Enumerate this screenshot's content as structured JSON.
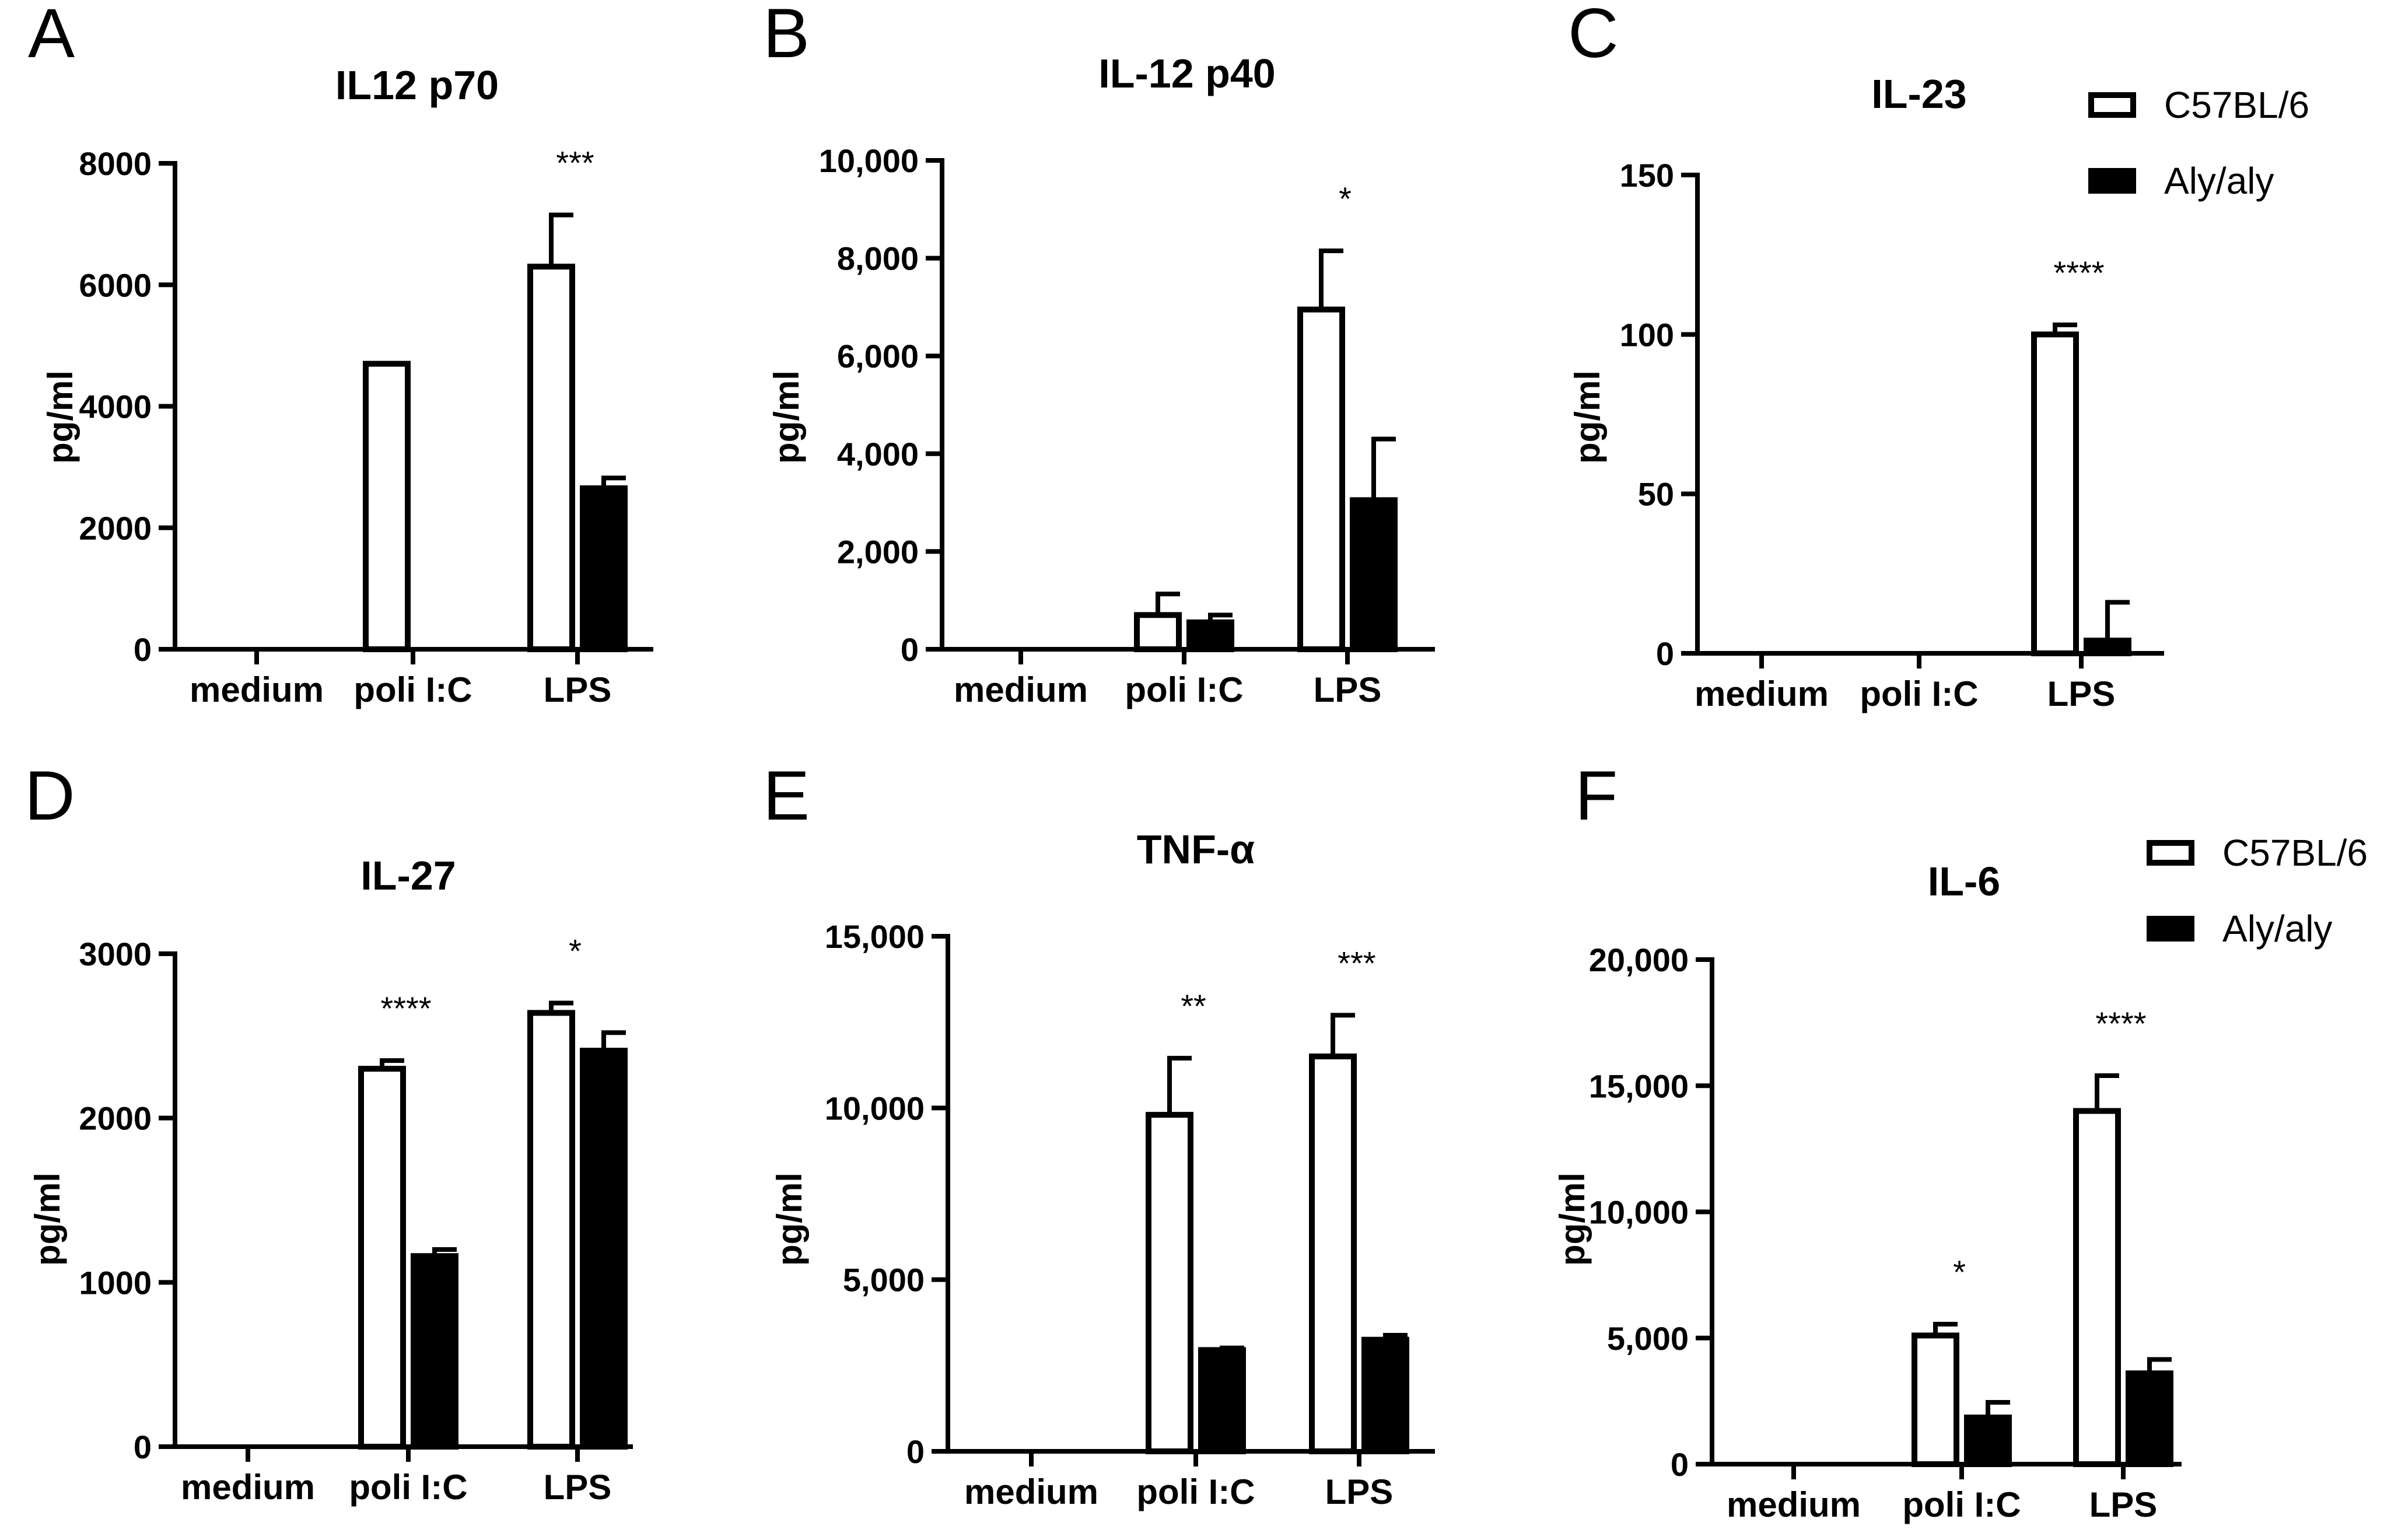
{
  "figure": {
    "legend": [
      {
        "label": "C57BL/6",
        "fill": "#ffffff"
      },
      {
        "label": "Aly/aly",
        "fill": "#000000"
      }
    ]
  },
  "colors": {
    "wild_type": "#ffffff",
    "mutant": "#000000",
    "stroke": "#000000"
  },
  "chart_data": [
    {
      "panel": "A",
      "type": "bar",
      "title": "IL12 p70",
      "ylabel": "pg/ml",
      "categories": [
        "medium",
        "poli I:C",
        "LPS"
      ],
      "ylim": [
        0,
        8000
      ],
      "yticks": [
        0,
        2000,
        4000,
        6000,
        8000
      ],
      "ytick_labels": [
        "0",
        "2000",
        "4000",
        "6000",
        "8000"
      ],
      "series": [
        {
          "name": "C57BL/6",
          "values": [
            0,
            4700,
            6300
          ],
          "errors": [
            0,
            0,
            850
          ]
        },
        {
          "name": "Aly/aly",
          "values": [
            0,
            0,
            2650
          ],
          "errors": [
            0,
            0,
            170
          ]
        }
      ],
      "significance": [
        "",
        "",
        "***"
      ],
      "legend": false
    },
    {
      "panel": "B",
      "type": "bar",
      "title": "IL-12 p40",
      "ylabel": "pg/ml",
      "categories": [
        "medium",
        "poli I:C",
        "LPS"
      ],
      "ylim": [
        0,
        10000
      ],
      "yticks": [
        0,
        2000,
        4000,
        6000,
        8000,
        10000
      ],
      "ytick_labels": [
        "0",
        "2,000",
        "4,000",
        "6,000",
        "8,000",
        "10,000"
      ],
      "series": [
        {
          "name": "C57BL/6",
          "values": [
            0,
            700,
            6950
          ],
          "errors": [
            0,
            430,
            1200
          ]
        },
        {
          "name": "Aly/aly",
          "values": [
            0,
            550,
            3050
          ],
          "errors": [
            0,
            150,
            1250
          ]
        }
      ],
      "significance": [
        "",
        "",
        "*"
      ],
      "legend": false
    },
    {
      "panel": "C",
      "type": "bar",
      "title": "IL-23",
      "ylabel": "pg/ml",
      "categories": [
        "medium",
        "poli I:C",
        "LPS"
      ],
      "ylim": [
        0,
        150
      ],
      "yticks": [
        0,
        50,
        100,
        150
      ],
      "ytick_labels": [
        "0",
        "50",
        "100",
        "150"
      ],
      "series": [
        {
          "name": "C57BL/6",
          "values": [
            0,
            0,
            100
          ],
          "errors": [
            0,
            0,
            3
          ]
        },
        {
          "name": "Aly/aly",
          "values": [
            0,
            0,
            4
          ],
          "errors": [
            0,
            0,
            12
          ]
        }
      ],
      "significance": [
        "",
        "",
        "****"
      ],
      "legend": true
    },
    {
      "panel": "D",
      "type": "bar",
      "title": "IL-27",
      "ylabel": "pg/ml",
      "categories": [
        "medium",
        "poli I:C",
        "LPS"
      ],
      "ylim": [
        0,
        3000
      ],
      "yticks": [
        0,
        1000,
        2000,
        3000
      ],
      "ytick_labels": [
        "0",
        "1000",
        "2000",
        "3000"
      ],
      "series": [
        {
          "name": "C57BL/6",
          "values": [
            0,
            2300,
            2640
          ],
          "errors": [
            0,
            50,
            60
          ]
        },
        {
          "name": "Aly/aly",
          "values": [
            0,
            1160,
            2410
          ],
          "errors": [
            0,
            40,
            110
          ]
        }
      ],
      "significance": [
        "",
        "****",
        "*"
      ],
      "legend": false
    },
    {
      "panel": "E",
      "type": "bar",
      "title": "TNF-α",
      "ylabel": "pg/ml",
      "categories": [
        "medium",
        "poli I:C",
        "LPS"
      ],
      "ylim": [
        0,
        15000
      ],
      "yticks": [
        0,
        5000,
        10000,
        15000
      ],
      "ytick_labels": [
        "0",
        "5,000",
        "10,000",
        "15,000"
      ],
      "series": [
        {
          "name": "C57BL/6",
          "values": [
            0,
            9800,
            11500
          ],
          "errors": [
            0,
            1650,
            1200
          ]
        },
        {
          "name": "Aly/aly",
          "values": [
            0,
            2950,
            3250
          ],
          "errors": [
            0,
            60,
            130
          ]
        }
      ],
      "significance": [
        "",
        "**",
        "***"
      ],
      "legend": false
    },
    {
      "panel": "F",
      "type": "bar",
      "title": "IL-6",
      "ylabel": "pg/ml",
      "categories": [
        "medium",
        "poli I:C",
        "LPS"
      ],
      "ylim": [
        0,
        20000
      ],
      "yticks": [
        0,
        5000,
        10000,
        15000,
        20000
      ],
      "ytick_labels": [
        "0",
        "5,000",
        "10,000",
        "15,000",
        "20,000"
      ],
      "series": [
        {
          "name": "C57BL/6",
          "values": [
            0,
            5100,
            14000
          ],
          "errors": [
            0,
            450,
            1400
          ]
        },
        {
          "name": "Aly/aly",
          "values": [
            0,
            1850,
            3600
          ],
          "errors": [
            0,
            600,
            550
          ]
        }
      ],
      "significance": [
        "",
        "*",
        "****"
      ],
      "legend": true
    }
  ]
}
